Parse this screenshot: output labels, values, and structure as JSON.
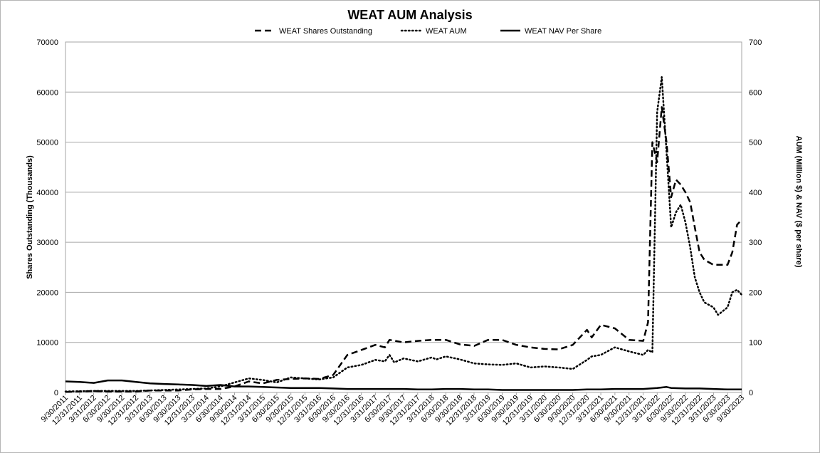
{
  "chart_data": {
    "type": "line",
    "title": "WEAT AUM Analysis",
    "ylabel": "Shares Outstanding (Thousands)",
    "y2label": "AUM (Million $) & NAV ($ per share)",
    "ylim": [
      0,
      70000
    ],
    "y2lim": [
      0,
      700
    ],
    "yticks": [
      0,
      10000,
      20000,
      30000,
      40000,
      50000,
      60000,
      70000
    ],
    "y2ticks": [
      0,
      100,
      200,
      300,
      400,
      500,
      600,
      700
    ],
    "xlim": [
      "2011-09-30",
      "2023-09-30"
    ],
    "xtick_labels": [
      "9/30/2011",
      "12/31/2011",
      "3/31/2012",
      "6/30/2012",
      "9/30/2012",
      "12/31/2012",
      "3/31/2013",
      "6/30/2013",
      "9/30/2013",
      "12/31/2013",
      "3/31/2014",
      "6/30/2014",
      "9/30/2014",
      "12/31/2014",
      "3/31/2015",
      "6/30/2015",
      "9/30/2015",
      "12/31/2015",
      "3/31/2016",
      "6/30/2016",
      "9/30/2016",
      "12/31/2016",
      "3/31/2017",
      "6/30/2017",
      "9/30/2017",
      "12/31/2017",
      "3/31/2018",
      "6/30/2018",
      "9/30/2018",
      "12/31/2018",
      "3/31/2019",
      "6/30/2019",
      "9/30/2019",
      "12/31/2019",
      "3/31/2020",
      "6/30/2020",
      "9/30/2020",
      "12/31/2020",
      "3/31/2021",
      "6/30/2021",
      "9/30/2021",
      "12/31/2021",
      "3/31/2022",
      "6/30/2022",
      "9/30/2022",
      "12/31/2022",
      "3/31/2023",
      "6/30/2023",
      "9/30/2023"
    ],
    "grid": "horizontal",
    "legend_position": "top",
    "series": [
      {
        "name": "WEAT Shares Outstanding",
        "axis": "left",
        "style": "dashed",
        "color": "#000000",
        "points": [
          [
            "2011-09-30",
            100
          ],
          [
            "2011-12-31",
            200
          ],
          [
            "2012-03-31",
            300
          ],
          [
            "2012-06-30",
            200
          ],
          [
            "2012-09-30",
            200
          ],
          [
            "2012-12-31",
            200
          ],
          [
            "2013-03-31",
            400
          ],
          [
            "2013-06-30",
            400
          ],
          [
            "2013-09-30",
            400
          ],
          [
            "2013-12-31",
            600
          ],
          [
            "2014-03-31",
            700
          ],
          [
            "2014-06-30",
            700
          ],
          [
            "2014-09-30",
            1200
          ],
          [
            "2014-12-31",
            2200
          ],
          [
            "2015-03-31",
            1800
          ],
          [
            "2015-06-30",
            2500
          ],
          [
            "2015-09-30",
            2700
          ],
          [
            "2015-12-31",
            2800
          ],
          [
            "2016-03-31",
            2700
          ],
          [
            "2016-06-30",
            3500
          ],
          [
            "2016-09-30",
            7500
          ],
          [
            "2016-12-31",
            8500
          ],
          [
            "2017-03-31",
            9500
          ],
          [
            "2017-05-31",
            9000
          ],
          [
            "2017-06-30",
            10500
          ],
          [
            "2017-09-30",
            10000
          ],
          [
            "2017-12-31",
            10300
          ],
          [
            "2018-03-31",
            10500
          ],
          [
            "2018-06-30",
            10500
          ],
          [
            "2018-09-30",
            9600
          ],
          [
            "2018-12-31",
            9300
          ],
          [
            "2019-03-31",
            10500
          ],
          [
            "2019-06-30",
            10500
          ],
          [
            "2019-09-30",
            9500
          ],
          [
            "2019-12-31",
            9000
          ],
          [
            "2020-03-31",
            8700
          ],
          [
            "2020-06-30",
            8600
          ],
          [
            "2020-09-30",
            9500
          ],
          [
            "2020-12-31",
            12500
          ],
          [
            "2021-01-31",
            11000
          ],
          [
            "2021-03-31",
            13500
          ],
          [
            "2021-06-30",
            12800
          ],
          [
            "2021-09-30",
            10500
          ],
          [
            "2021-12-31",
            10300
          ],
          [
            "2022-01-31",
            14000
          ],
          [
            "2022-02-28",
            50000
          ],
          [
            "2022-03-31",
            46000
          ],
          [
            "2022-04-30",
            57000
          ],
          [
            "2022-05-31",
            50000
          ],
          [
            "2022-06-30",
            39000
          ],
          [
            "2022-07-31",
            42500
          ],
          [
            "2022-08-31",
            41500
          ],
          [
            "2022-09-30",
            40000
          ],
          [
            "2022-10-31",
            38000
          ],
          [
            "2022-11-30",
            33000
          ],
          [
            "2022-12-31",
            28000
          ],
          [
            "2023-01-31",
            26500
          ],
          [
            "2023-03-31",
            25500
          ],
          [
            "2023-04-30",
            25500
          ],
          [
            "2023-06-30",
            25500
          ],
          [
            "2023-07-31",
            28000
          ],
          [
            "2023-08-31",
            33500
          ],
          [
            "2023-09-30",
            34500
          ]
        ]
      },
      {
        "name": "WEAT AUM",
        "axis": "right",
        "style": "dotted",
        "color": "#000000",
        "points": [
          [
            "2011-09-30",
            2
          ],
          [
            "2012-03-31",
            3
          ],
          [
            "2012-12-31",
            3
          ],
          [
            "2013-06-30",
            5
          ],
          [
            "2013-12-31",
            7
          ],
          [
            "2014-03-31",
            8
          ],
          [
            "2014-06-30",
            12
          ],
          [
            "2014-09-30",
            20
          ],
          [
            "2014-12-31",
            28
          ],
          [
            "2015-03-31",
            25
          ],
          [
            "2015-06-30",
            20
          ],
          [
            "2015-09-30",
            30
          ],
          [
            "2015-12-31",
            28
          ],
          [
            "2016-03-31",
            26
          ],
          [
            "2016-06-30",
            30
          ],
          [
            "2016-09-30",
            50
          ],
          [
            "2016-12-31",
            55
          ],
          [
            "2017-03-31",
            65
          ],
          [
            "2017-05-31",
            62
          ],
          [
            "2017-06-30",
            75
          ],
          [
            "2017-07-31",
            60
          ],
          [
            "2017-09-30",
            68
          ],
          [
            "2017-12-31",
            62
          ],
          [
            "2018-03-31",
            70
          ],
          [
            "2018-04-30",
            66
          ],
          [
            "2018-06-30",
            72
          ],
          [
            "2018-09-30",
            66
          ],
          [
            "2018-12-31",
            58
          ],
          [
            "2019-03-31",
            56
          ],
          [
            "2019-06-30",
            55
          ],
          [
            "2019-09-30",
            58
          ],
          [
            "2019-12-31",
            50
          ],
          [
            "2020-03-31",
            52
          ],
          [
            "2020-06-30",
            50
          ],
          [
            "2020-09-30",
            47
          ],
          [
            "2020-12-31",
            65
          ],
          [
            "2021-01-31",
            72
          ],
          [
            "2021-03-31",
            75
          ],
          [
            "2021-06-30",
            90
          ],
          [
            "2021-09-30",
            82
          ],
          [
            "2021-12-31",
            75
          ],
          [
            "2022-01-31",
            85
          ],
          [
            "2022-02-28",
            80
          ],
          [
            "2022-03-31",
            560
          ],
          [
            "2022-04-30",
            630
          ],
          [
            "2022-05-31",
            480
          ],
          [
            "2022-06-30",
            330
          ],
          [
            "2022-07-31",
            360
          ],
          [
            "2022-08-31",
            375
          ],
          [
            "2022-09-30",
            340
          ],
          [
            "2022-10-31",
            290
          ],
          [
            "2022-11-30",
            230
          ],
          [
            "2022-12-31",
            200
          ],
          [
            "2023-01-31",
            180
          ],
          [
            "2023-03-31",
            170
          ],
          [
            "2023-04-30",
            155
          ],
          [
            "2023-06-30",
            170
          ],
          [
            "2023-07-31",
            200
          ],
          [
            "2023-08-31",
            205
          ],
          [
            "2023-09-30",
            195
          ]
        ]
      },
      {
        "name": "WEAT NAV Per Share",
        "axis": "right",
        "style": "solid",
        "color": "#000000",
        "points": [
          [
            "2011-09-30",
            22
          ],
          [
            "2011-12-31",
            21
          ],
          [
            "2012-03-31",
            19
          ],
          [
            "2012-06-30",
            24
          ],
          [
            "2012-09-30",
            24
          ],
          [
            "2012-12-31",
            21
          ],
          [
            "2013-03-31",
            18
          ],
          [
            "2013-06-30",
            17
          ],
          [
            "2013-09-30",
            16
          ],
          [
            "2013-12-31",
            15
          ],
          [
            "2014-03-31",
            13
          ],
          [
            "2014-06-30",
            15
          ],
          [
            "2014-09-30",
            12
          ],
          [
            "2014-12-31",
            12
          ],
          [
            "2015-03-31",
            11
          ],
          [
            "2015-06-30",
            10
          ],
          [
            "2015-09-30",
            9
          ],
          [
            "2015-12-31",
            9
          ],
          [
            "2016-03-31",
            9
          ],
          [
            "2016-06-30",
            8
          ],
          [
            "2016-09-30",
            7
          ],
          [
            "2016-12-31",
            7
          ],
          [
            "2017-03-31",
            7
          ],
          [
            "2017-06-30",
            7
          ],
          [
            "2017-09-30",
            7
          ],
          [
            "2017-12-31",
            6
          ],
          [
            "2018-03-31",
            6
          ],
          [
            "2018-06-30",
            7
          ],
          [
            "2018-09-30",
            7
          ],
          [
            "2018-12-31",
            6
          ],
          [
            "2019-03-31",
            6
          ],
          [
            "2019-06-30",
            5
          ],
          [
            "2019-09-30",
            5
          ],
          [
            "2019-12-31",
            5
          ],
          [
            "2020-03-31",
            5
          ],
          [
            "2020-06-30",
            5
          ],
          [
            "2020-09-30",
            5
          ],
          [
            "2020-12-31",
            6
          ],
          [
            "2021-03-31",
            6
          ],
          [
            "2021-06-30",
            7
          ],
          [
            "2021-09-30",
            7
          ],
          [
            "2021-12-31",
            7
          ],
          [
            "2022-03-31",
            9
          ],
          [
            "2022-05-31",
            11
          ],
          [
            "2022-06-30",
            9
          ],
          [
            "2022-09-30",
            8
          ],
          [
            "2022-12-31",
            8
          ],
          [
            "2023-03-31",
            7
          ],
          [
            "2023-06-30",
            6
          ],
          [
            "2023-09-30",
            6
          ]
        ]
      }
    ]
  }
}
